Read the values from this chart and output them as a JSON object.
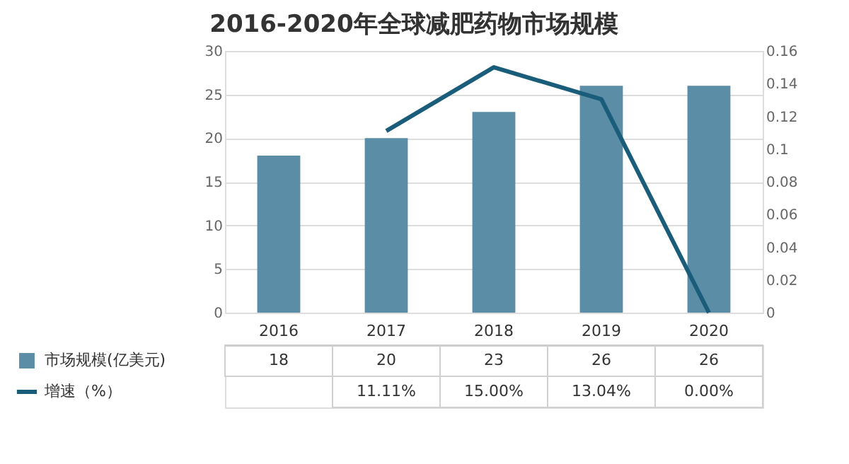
{
  "chart_data": {
    "type": "bar",
    "title": "2016-2020年全球减肥药物市场规模",
    "categories": [
      "2016",
      "2017",
      "2018",
      "2019",
      "2020"
    ],
    "series": [
      {
        "name": "市场规模(亿美元)",
        "color": "#5b8ea6",
        "values": [
          18,
          20,
          23,
          26,
          26
        ],
        "value_labels": [
          "18",
          "20",
          "23",
          "26",
          "26"
        ]
      },
      {
        "name": "增速（%）",
        "type": "line",
        "axis": "y2",
        "color": "#1a5d7a",
        "values": [
          null,
          0.1111,
          0.15,
          0.1304,
          0.0
        ],
        "value_labels": [
          null,
          "11.11%",
          "15.00%",
          "13.04%",
          "0.00%"
        ]
      }
    ],
    "ylim": [
      0,
      30
    ],
    "yticks": [
      0,
      5,
      10,
      15,
      20,
      25,
      30
    ],
    "y2lim": [
      0,
      0.16
    ],
    "y2ticks": [
      0,
      0.02,
      0.04,
      0.06,
      0.08,
      0.1,
      0.12,
      0.14,
      0.16
    ],
    "grid": "y",
    "legend": "bottom"
  }
}
